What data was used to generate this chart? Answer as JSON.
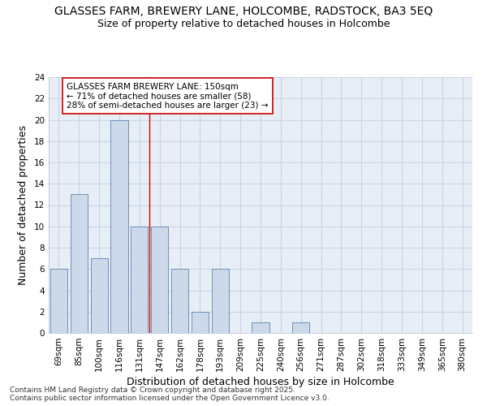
{
  "title_line1": "GLASSES FARM, BREWERY LANE, HOLCOMBE, RADSTOCK, BA3 5EQ",
  "title_line2": "Size of property relative to detached houses in Holcombe",
  "xlabel": "Distribution of detached houses by size in Holcombe",
  "ylabel": "Number of detached properties",
  "categories": [
    "69sqm",
    "85sqm",
    "100sqm",
    "116sqm",
    "131sqm",
    "147sqm",
    "162sqm",
    "178sqm",
    "193sqm",
    "209sqm",
    "225sqm",
    "240sqm",
    "256sqm",
    "271sqm",
    "287sqm",
    "302sqm",
    "318sqm",
    "333sqm",
    "349sqm",
    "365sqm",
    "380sqm"
  ],
  "values": [
    6,
    13,
    7,
    20,
    10,
    10,
    6,
    2,
    6,
    0,
    1,
    0,
    1,
    0,
    0,
    0,
    0,
    0,
    0,
    0,
    0
  ],
  "bar_color": "#ccd9ea",
  "bar_edge_color": "#7090b8",
  "grid_color": "#c8d4e4",
  "background_color": "#e8eef6",
  "vline_x": 4.5,
  "vline_color": "#cc0000",
  "annotation_text": "GLASSES FARM BREWERY LANE: 150sqm\n← 71% of detached houses are smaller (58)\n28% of semi-detached houses are larger (23) →",
  "annotation_box_color": "#ffffff",
  "annotation_box_edge": "#cc0000",
  "ylim": [
    0,
    24
  ],
  "yticks": [
    0,
    2,
    4,
    6,
    8,
    10,
    12,
    14,
    16,
    18,
    20,
    22,
    24
  ],
  "footnote": "Contains HM Land Registry data © Crown copyright and database right 2025.\nContains public sector information licensed under the Open Government Licence v3.0.",
  "title_fontsize": 10,
  "subtitle_fontsize": 9,
  "label_fontsize": 9,
  "tick_fontsize": 7.5,
  "annot_fontsize": 7.5,
  "footnote_fontsize": 6.5
}
